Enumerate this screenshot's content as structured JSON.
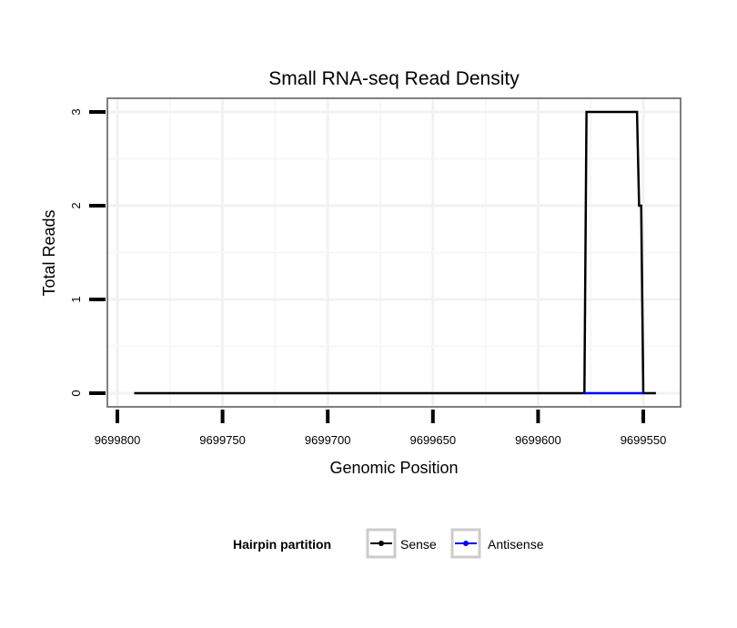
{
  "chart_data": {
    "type": "line",
    "title": "Small RNA-seq Read Density",
    "xlabel": "Genomic Position",
    "ylabel": "Total Reads",
    "xlim": [
      9699805,
      9699540
    ],
    "x_reversed": true,
    "ylim": [
      -0.15,
      3.15
    ],
    "xticks": [
      9699800,
      9699750,
      9699700,
      9699650,
      9699600,
      9699550
    ],
    "xtick_labels": [
      "9699800",
      "9699750",
      "9699700",
      "9699650",
      "9699600",
      "9699550"
    ],
    "yticks": [
      0,
      1,
      2,
      3
    ],
    "ytick_labels": [
      "0",
      "1",
      "2",
      "3"
    ],
    "grid": true,
    "legend": {
      "title": "Hairpin partition",
      "placement": "bottom",
      "entries": [
        "Sense",
        "Antisense"
      ]
    },
    "series": [
      {
        "name": "Sense",
        "color": "#000000",
        "x": [
          9699792,
          9699578,
          9699577,
          9699553,
          9699552,
          9699551,
          9699550,
          9699544
        ],
        "y": [
          0,
          0,
          3,
          3,
          2,
          2,
          0,
          0
        ]
      },
      {
        "name": "Antisense",
        "color": "#0000ff",
        "x": [
          9699578,
          9699550
        ],
        "y": [
          0,
          0
        ]
      }
    ]
  }
}
